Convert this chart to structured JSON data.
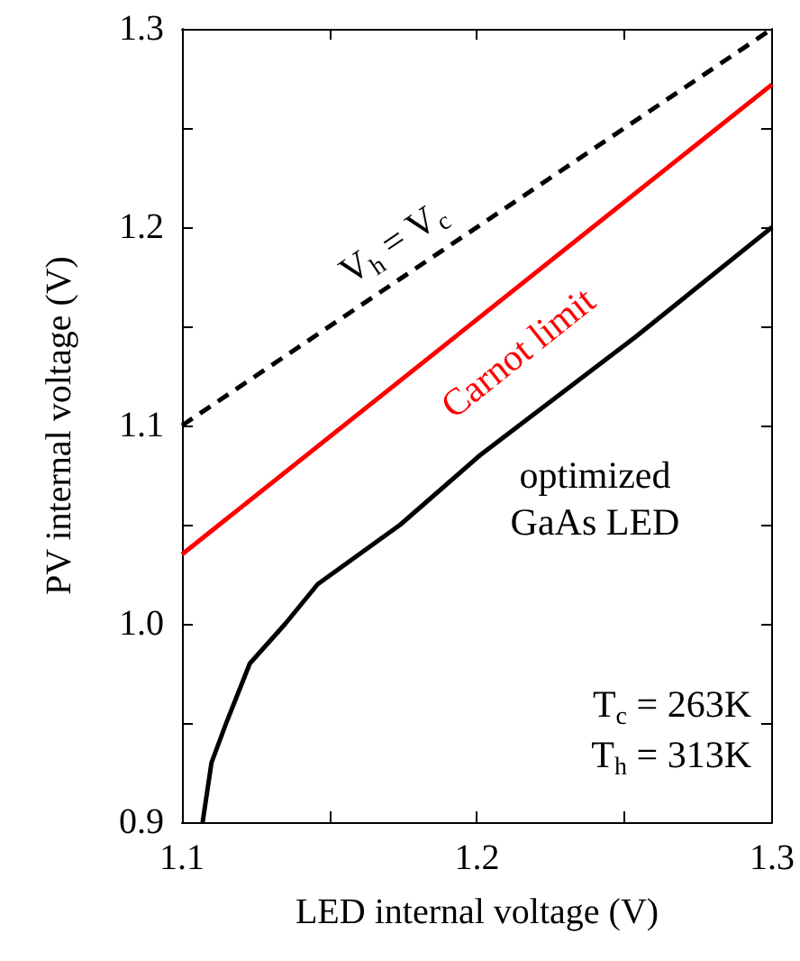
{
  "chart_data": {
    "type": "line",
    "xlabel": "LED internal voltage (V)",
    "ylabel": "PV internal voltage (V)",
    "xlim": [
      1.1,
      1.3
    ],
    "ylim": [
      0.9,
      1.3
    ],
    "xticks": [
      1.1,
      {
        "value": 1.15,
        "label": null
      },
      1.2,
      {
        "value": 1.25,
        "label": null
      },
      1.3
    ],
    "yticks": [
      0.9,
      {
        "value": 0.95,
        "label": null
      },
      {
        "value": 1.0,
        "label": "1.0"
      },
      {
        "value": 1.05,
        "label": null
      },
      1.1,
      {
        "value": 1.15,
        "label": null
      },
      1.2,
      {
        "value": 1.25,
        "label": null
      },
      1.3
    ],
    "grid": false,
    "marker": "none",
    "series": [
      {
        "name": "V$_{h}$ = V$_{c}$",
        "color": "#000000",
        "line_style": "dashed",
        "x": [
          1.1,
          1.3
        ],
        "values": [
          1.1,
          1.3
        ]
      },
      {
        "name": "Carnot limit",
        "color": "#ff0000",
        "line_style": "solid",
        "x": [
          1.1,
          1.3
        ],
        "values": [
          1.035,
          1.272
        ]
      },
      {
        "name": "optimized GaAs LED",
        "color": "#000000",
        "line_style": "solid",
        "x": [
          1.107,
          1.11,
          1.115,
          1.123,
          1.135,
          1.146,
          1.174,
          1.201,
          1.254,
          1.3
        ],
        "values": [
          0.9,
          0.93,
          0.95,
          0.98,
          1.0,
          1.02,
          1.05,
          1.085,
          1.145,
          1.2
        ]
      }
    ],
    "annotations": [
      "T$_{c}$ = 263K",
      "T$_{h}$ = 313K"
    ]
  }
}
